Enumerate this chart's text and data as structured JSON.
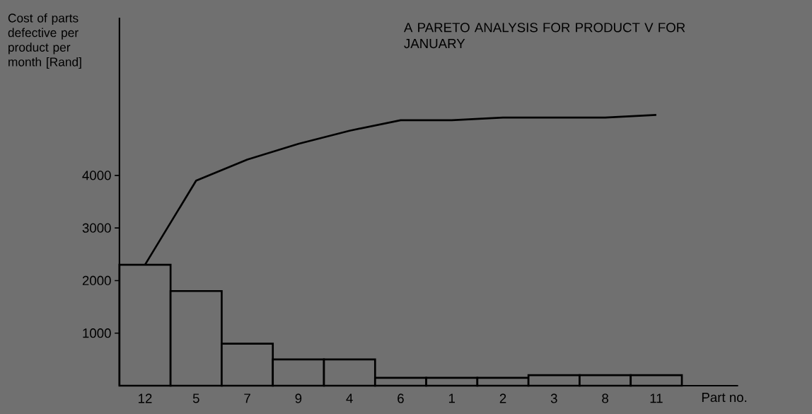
{
  "chart_data": {
    "type": "bar",
    "title": "A PARETO ANALYSIS FOR PRODUCT V FOR JANUARY",
    "ylabel": "Cost of parts defective per product per month [Rand]",
    "xlabel": "Part no.",
    "categories": [
      "12",
      "5",
      "7",
      "9",
      "4",
      "6",
      "1",
      "2",
      "3",
      "8",
      "11"
    ],
    "series": [
      {
        "color": "#000000",
        "values": [
          2300,
          1800,
          800,
          500,
          500,
          150,
          150,
          150,
          200,
          200,
          200
        ]
      },
      {
        "type": "line",
        "color": "#000000",
        "values": [
          2300,
          3900,
          4300,
          4600,
          4850,
          5050,
          5050,
          5100,
          5100,
          5100,
          5150
        ]
      }
    ],
    "ylim": [
      0,
      7000
    ],
    "yticks": [
      1000,
      2000,
      3000,
      4000
    ]
  }
}
